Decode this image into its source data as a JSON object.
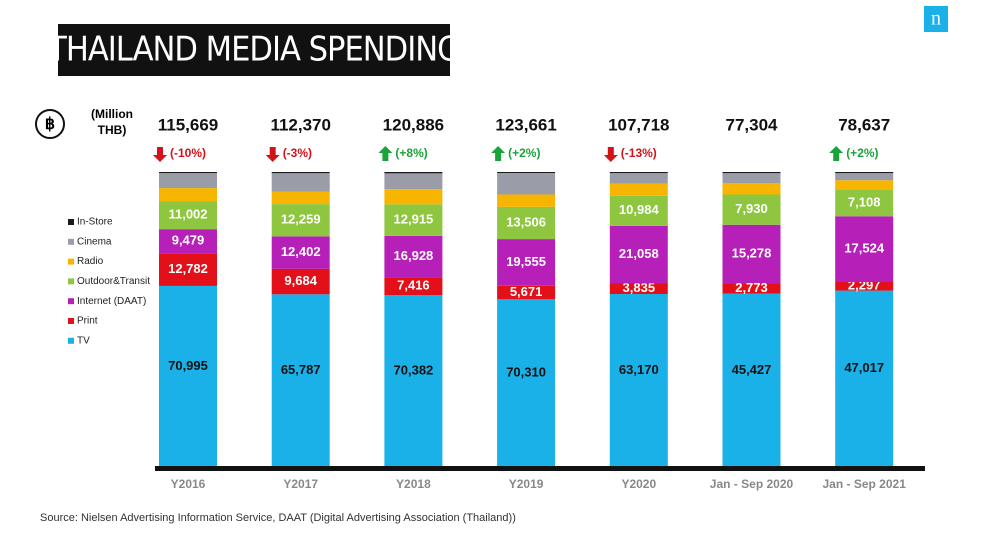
{
  "chart_data": {
    "type": "stacked_bar_100",
    "title": "THAILAND MEDIA SPENDING",
    "unit_label": [
      "(Million",
      "THB)"
    ],
    "currency_symbol": "฿",
    "logo": "n",
    "source": "Source: Nielsen Advertising Information Service, DAAT (Digital Advertising Association (Thailand))",
    "categories": [
      "Y2016",
      "Y2017",
      "Y2018",
      "Y2019",
      "Y2020",
      "Jan - Sep 2020",
      "Jan - Sep 2021"
    ],
    "totals": [
      115669,
      112370,
      120886,
      123661,
      107718,
      77304,
      78637
    ],
    "total_labels": [
      "115,669",
      "112,370",
      "120,886",
      "123,661",
      "107,718",
      "77,304",
      "78,637"
    ],
    "changes": [
      "(-10%)",
      "(-3%)",
      "(+8%)",
      "(+2%)",
      "(-13%)",
      null,
      "(+2%)"
    ],
    "change_directions": [
      "down",
      "down",
      "up",
      "up",
      "down",
      null,
      "up"
    ],
    "series": [
      {
        "name": "TV",
        "color": "#1ab0e8",
        "values": [
          70995,
          65787,
          70382,
          70310,
          63170,
          45427,
          47017
        ],
        "value_labels": [
          "70,995",
          "65,787",
          "70,382",
          "70,310",
          "63,170",
          "45,427",
          "47,017"
        ]
      },
      {
        "name": "Print",
        "color": "#e3101a",
        "values": [
          12782,
          9684,
          7416,
          5671,
          3835,
          2773,
          2297
        ],
        "value_labels": [
          "12,782",
          "9,684",
          "7,416",
          "5,671",
          "3,835",
          "2,773",
          "2,297"
        ]
      },
      {
        "name": "Internet (DAAT)",
        "color": "#b620b8",
        "values": [
          9479,
          12402,
          16928,
          19555,
          21058,
          15278,
          17524
        ],
        "value_labels": [
          "9,479",
          "12,402",
          "16,928",
          "19,555",
          "21,058",
          "15,278",
          "17,524"
        ]
      },
      {
        "name": "Outdoor&Transit",
        "color": "#8fc63f",
        "values": [
          11002,
          12259,
          12915,
          13506,
          10984,
          7930,
          7108
        ],
        "value_labels": [
          "11,002",
          "12,259",
          "12,915",
          "13,506",
          "10,984",
          "7,930",
          "7,108"
        ]
      },
      {
        "name": "Radio",
        "color": "#f7b500",
        "values": [
          5100,
          4800,
          6200,
          5200,
          4400,
          3000,
          2500
        ]
      },
      {
        "name": "Cinema",
        "color": "#9a9ca8",
        "values": [
          5900,
          7000,
          6500,
          9000,
          3900,
          2600,
          1900
        ]
      },
      {
        "name": "In-Store",
        "color": "#1a1a1a",
        "values": [
          411,
          438,
          545,
          419,
          371,
          296,
          291
        ]
      }
    ]
  }
}
